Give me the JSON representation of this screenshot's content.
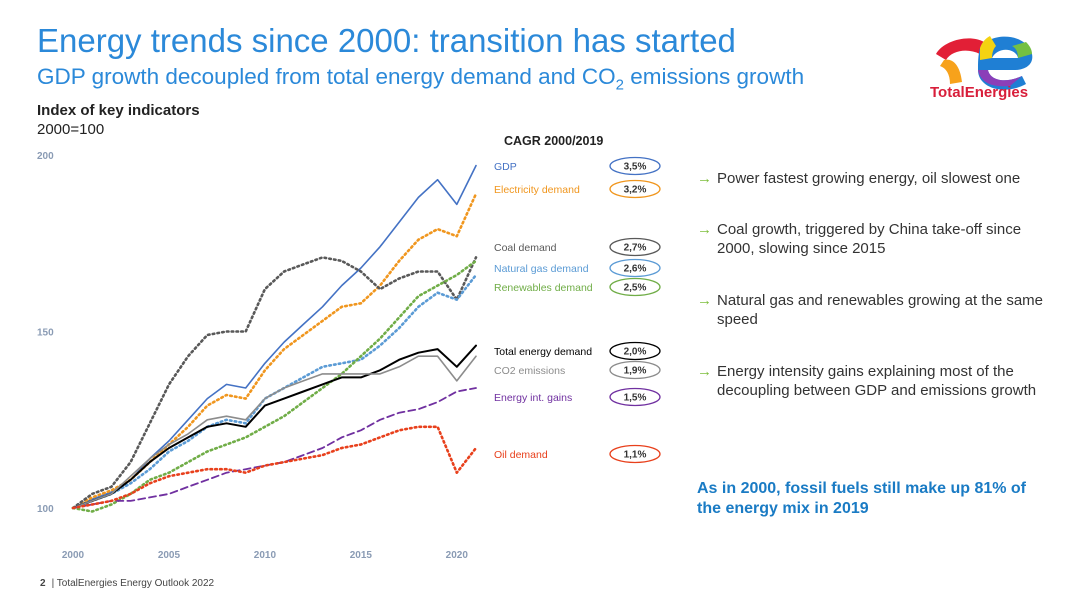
{
  "header": {
    "title": "Energy trends since 2000: transition has started",
    "subtitle_pre": "GDP growth decoupled from total energy demand and CO",
    "subtitle_sub": "2",
    "subtitle_post": " emissions growth"
  },
  "brand": {
    "logo_text": "TotalEnergies",
    "colors": {
      "red": "#e21f36",
      "orange": "#f7a21b",
      "yellow": "#f4d311",
      "blue": "#1f7fd4",
      "purple": "#8b3fb8",
      "green": "#74c043"
    }
  },
  "chart_heading": {
    "title": "Index of key indicators",
    "subtitle": "2000=100"
  },
  "cagr_heading": "CAGR 2000/2019",
  "chart_data": {
    "type": "line",
    "x": [
      2000,
      2001,
      2002,
      2003,
      2004,
      2005,
      2006,
      2007,
      2008,
      2009,
      2010,
      2011,
      2012,
      2013,
      2014,
      2015,
      2016,
      2017,
      2018,
      2019,
      2020,
      2021
    ],
    "xticks": [
      "2000",
      "2005",
      "2010",
      "2015",
      "2020"
    ],
    "yticks": [
      "100",
      "150",
      "200"
    ],
    "xlim": [
      2000,
      2021
    ],
    "ylim": [
      100,
      200
    ],
    "series": [
      {
        "name": "GDP",
        "cagr": "3,5%",
        "color": "#4472c4",
        "style": "solid",
        "values": [
          100,
          102.5,
          104.5,
          108,
          114,
          119,
          125,
          131,
          135,
          134,
          141,
          147,
          152,
          157,
          163,
          168,
          174,
          181,
          188,
          193,
          186,
          197
        ]
      },
      {
        "name": "Electricity demand",
        "cagr": "3,2%",
        "color": "#f0961e",
        "style": "dotted",
        "values": [
          100,
          103,
          105,
          108,
          113,
          118,
          123,
          129,
          132,
          131,
          139,
          145,
          149,
          153,
          157,
          158,
          163,
          170,
          176,
          179,
          177,
          189
        ]
      },
      {
        "name": "Coal demand",
        "cagr": "2,7%",
        "color": "#595959",
        "style": "dotted",
        "values": [
          100,
          104,
          106,
          113,
          124,
          135,
          143,
          149,
          150,
          150,
          162,
          167,
          169,
          171,
          170,
          167,
          162,
          165,
          167,
          167,
          159,
          171
        ]
      },
      {
        "name": "Natural gas demand",
        "cagr": "2,6%",
        "color": "#5b9bd5",
        "style": "dotted",
        "values": [
          100,
          102,
          104,
          107,
          111,
          116,
          119,
          123,
          125,
          124,
          131,
          134,
          137,
          140,
          141,
          142,
          146,
          151,
          157,
          161,
          159,
          166
        ]
      },
      {
        "name": "Renewables demand",
        "cagr": "2,5%",
        "color": "#70ad47",
        "style": "dotted",
        "values": [
          100,
          99,
          101,
          104,
          108,
          110,
          113,
          116,
          118,
          120,
          123,
          126,
          130,
          134,
          138,
          143,
          148,
          154,
          160,
          163,
          166,
          170
        ]
      },
      {
        "name": "Total energy demand",
        "cagr": "2,0%",
        "color": "#000000",
        "style": "solid",
        "values": [
          100,
          102,
          104,
          108,
          113,
          117,
          120,
          123,
          124,
          123,
          129,
          131,
          133,
          135,
          137,
          137,
          139,
          142,
          144,
          145,
          140,
          146
        ]
      },
      {
        "name": "CO2 emissions",
        "cagr": "1,9%",
        "color": "#8c8c8c",
        "style": "solid",
        "values": [
          100,
          102,
          104,
          109,
          114,
          118,
          121,
          125,
          126,
          125,
          131,
          134,
          136,
          138,
          138,
          138,
          138,
          140,
          143,
          143,
          136,
          143
        ]
      },
      {
        "name": "Energy int. gains",
        "cagr": "1,5%",
        "color": "#7030a0",
        "style": "dashed",
        "values": [
          100,
          101,
          102,
          102,
          103,
          104,
          106,
          108,
          110,
          111,
          112,
          113,
          115,
          117,
          120,
          122,
          125,
          127,
          128,
          130,
          133,
          134
        ]
      },
      {
        "name": "Oil demand",
        "cagr": "1,1%",
        "color": "#e8401c",
        "style": "dotted",
        "values": [
          100,
          101,
          102,
          104,
          107,
          109,
          110,
          111,
          111,
          110,
          112,
          113,
          114,
          115,
          117,
          118,
          120,
          122,
          123,
          123,
          110,
          117
        ]
      }
    ]
  },
  "bullets": [
    "Power fastest growing energy, oil slowest one",
    "Coal growth, triggered by China take-off since 2000, slowing since 2015",
    "Natural gas and renewables growing at the same speed",
    "Energy intensity gains explaining most of the decoupling between GDP and emissions growth"
  ],
  "bullet_arrow": "→",
  "conclusion": "As in 2000, fossil fuels still make up 81% of the energy mix in 2019",
  "footer": {
    "page_number": "2",
    "separator": "|",
    "text": "TotalEnergies Energy Outlook 2022"
  }
}
